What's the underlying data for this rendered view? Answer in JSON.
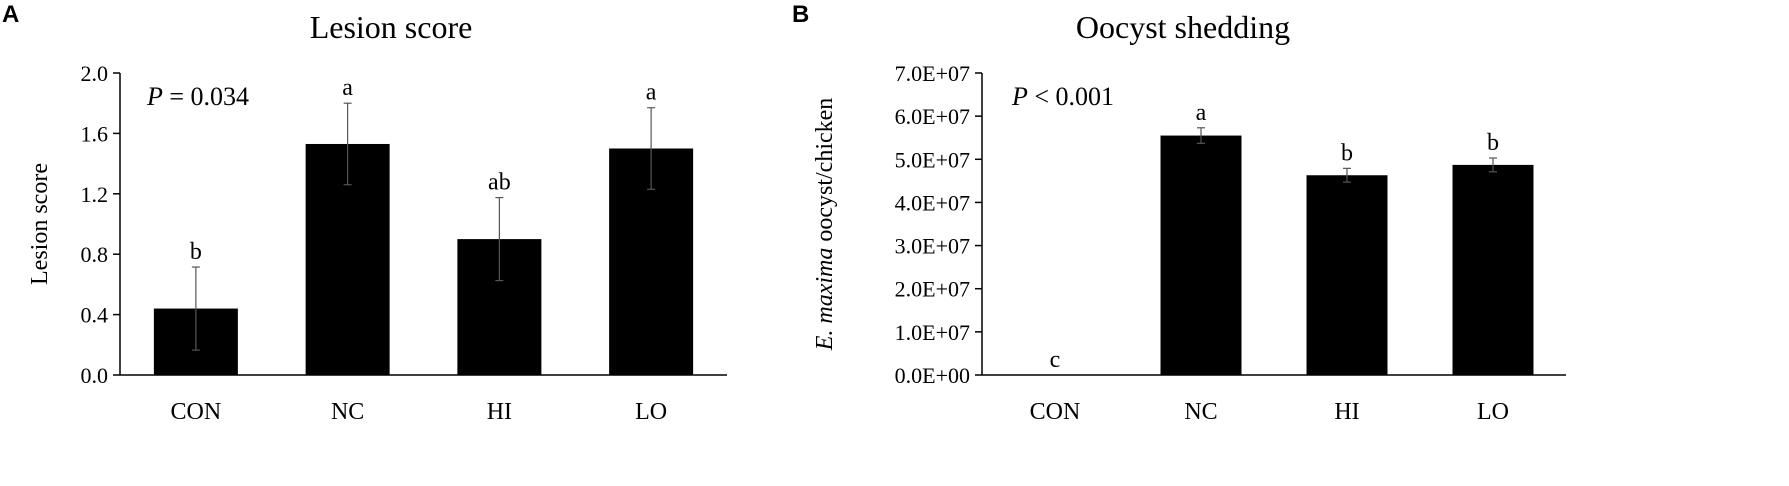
{
  "chart_data": [
    {
      "type": "bar",
      "panel_label": "A",
      "title": "Lesion score",
      "ylabel": "Lesion score",
      "xlabel": "",
      "categories": [
        "CON",
        "NC",
        "HI",
        "LO"
      ],
      "values": [
        0.44,
        1.53,
        0.9,
        1.5
      ],
      "errors": [
        0.275,
        0.27,
        0.275,
        0.27
      ],
      "significance": [
        "b",
        "a",
        "ab",
        "a"
      ],
      "ylim": [
        0,
        2.0
      ],
      "yticks": [
        "0.0",
        "0.4",
        "0.8",
        "1.2",
        "1.6",
        "2.0"
      ],
      "p_value": {
        "prefix": "P",
        "text": " = 0.034"
      },
      "bar_color": "#000000",
      "grid": false
    },
    {
      "type": "bar",
      "panel_label": "B",
      "title": "Oocyst shedding",
      "ylabel": {
        "italic": "E. maxima",
        "rest": " oocyst/chicken"
      },
      "xlabel": "",
      "categories": [
        "CON",
        "NC",
        "HI",
        "LO"
      ],
      "values": [
        0,
        55500000,
        46300000,
        48700000
      ],
      "errors": [
        0,
        1800000,
        1600000,
        1600000
      ],
      "significance": [
        "c",
        "a",
        "b",
        "b"
      ],
      "ylim": [
        0,
        70000000
      ],
      "yticks": [
        "0.0E+00",
        "1.0E+07",
        "2.0E+07",
        "3.0E+07",
        "4.0E+07",
        "5.0E+07",
        "6.0E+07",
        "7.0E+07"
      ],
      "p_value": {
        "prefix": "P",
        "text": " < 0.001"
      },
      "bar_color": "#000000",
      "grid": false
    }
  ]
}
